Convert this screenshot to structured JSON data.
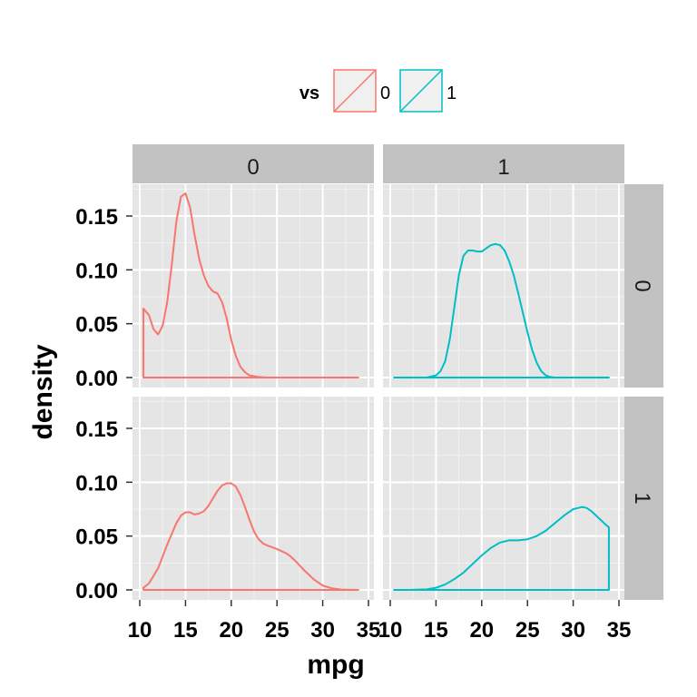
{
  "chart_data": {
    "type": "line",
    "title": "",
    "xlabel": "mpg",
    "ylabel": "density",
    "xlim": [
      10,
      35
    ],
    "ylim": [
      0,
      0.175
    ],
    "x_ticks": [
      "10",
      "15",
      "20",
      "25",
      "30",
      "35"
    ],
    "y_ticks": [
      "0.00",
      "0.05",
      "0.10",
      "0.15"
    ],
    "grid": true,
    "legend": {
      "title": "vs",
      "position": "top",
      "items": [
        {
          "label": "0",
          "color": "#F8766D"
        },
        {
          "label": "1",
          "color": "#00BFC4"
        }
      ]
    },
    "facet_cols": {
      "values": [
        "0",
        "1"
      ]
    },
    "facet_rows": {
      "values": [
        "0",
        "1"
      ]
    },
    "panels": [
      {
        "row": "0",
        "col": "0",
        "color": "#F8766D",
        "x": [
          10.4,
          11,
          11.5,
          12,
          12.5,
          13,
          13.5,
          14,
          14.5,
          15,
          15.5,
          16,
          16.5,
          17,
          17.5,
          18,
          18.5,
          19,
          19.5,
          20,
          20.5,
          21,
          21.5,
          22,
          23,
          24,
          27,
          30,
          33.9
        ],
        "y": [
          0.064,
          0.058,
          0.045,
          0.04,
          0.048,
          0.07,
          0.105,
          0.145,
          0.168,
          0.171,
          0.158,
          0.132,
          0.11,
          0.095,
          0.085,
          0.08,
          0.078,
          0.07,
          0.055,
          0.035,
          0.02,
          0.01,
          0.005,
          0.002,
          0.0005,
          0,
          0,
          0,
          0
        ]
      },
      {
        "row": "0",
        "col": "1",
        "color": "#00BFC4",
        "x": [
          10.4,
          12,
          14,
          15,
          15.5,
          16,
          16.5,
          17,
          17.5,
          18,
          18.5,
          19,
          19.5,
          20,
          20.5,
          21,
          21.5,
          22,
          22.5,
          23,
          23.5,
          24,
          24.5,
          25,
          25.5,
          26,
          26.5,
          27,
          27.5,
          28,
          29,
          31,
          33.9
        ],
        "y": [
          0,
          0,
          0,
          0.002,
          0.006,
          0.015,
          0.035,
          0.065,
          0.095,
          0.113,
          0.118,
          0.118,
          0.117,
          0.117,
          0.12,
          0.123,
          0.124,
          0.123,
          0.118,
          0.108,
          0.095,
          0.078,
          0.06,
          0.042,
          0.026,
          0.014,
          0.006,
          0.002,
          0.0005,
          0,
          0,
          0,
          0
        ]
      },
      {
        "row": "1",
        "col": "0",
        "color": "#F8766D",
        "x": [
          10.4,
          11,
          12,
          13,
          14,
          14.5,
          15,
          15.5,
          16,
          16.5,
          17,
          17.5,
          18,
          18.5,
          19,
          19.5,
          20,
          20.5,
          21,
          21.5,
          22,
          22.5,
          23,
          23.5,
          24,
          25,
          26,
          26.5,
          27,
          28,
          29,
          30,
          31,
          32,
          33.9
        ],
        "y": [
          0.002,
          0.006,
          0.02,
          0.042,
          0.062,
          0.069,
          0.072,
          0.072,
          0.07,
          0.071,
          0.073,
          0.078,
          0.085,
          0.092,
          0.097,
          0.099,
          0.099,
          0.096,
          0.088,
          0.077,
          0.065,
          0.054,
          0.047,
          0.043,
          0.041,
          0.038,
          0.034,
          0.031,
          0.027,
          0.018,
          0.01,
          0.004,
          0.0015,
          0.0003,
          0
        ]
      },
      {
        "row": "1",
        "col": "1",
        "color": "#00BFC4",
        "x": [
          10.4,
          12,
          14,
          15,
          16,
          17,
          18,
          19,
          20,
          21,
          22,
          23,
          24,
          25,
          26,
          27,
          28,
          29,
          30,
          30.5,
          31,
          31.5,
          32,
          32.5,
          33,
          33.5,
          33.9
        ],
        "y": [
          0,
          0,
          0.0005,
          0.002,
          0.005,
          0.01,
          0.016,
          0.024,
          0.032,
          0.039,
          0.044,
          0.046,
          0.046,
          0.047,
          0.05,
          0.055,
          0.062,
          0.069,
          0.075,
          0.076,
          0.077,
          0.076,
          0.073,
          0.069,
          0.065,
          0.061,
          0.058
        ]
      }
    ]
  }
}
